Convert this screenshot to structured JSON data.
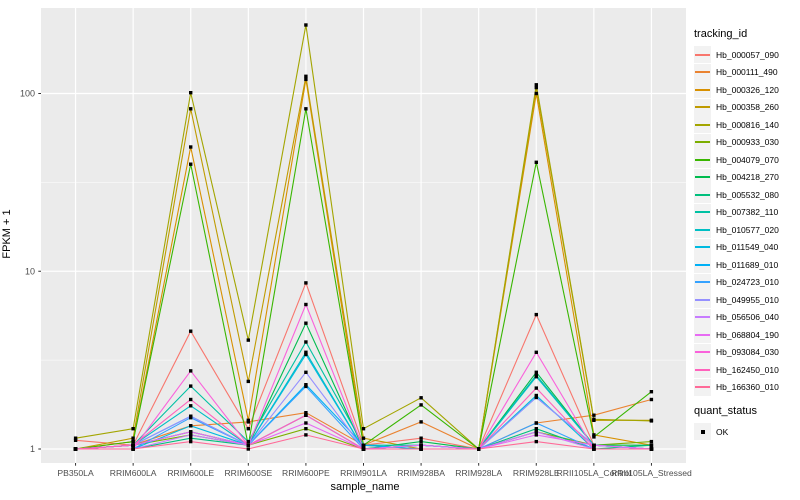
{
  "chart_data": {
    "type": "line",
    "title": "",
    "xlabel": "sample_name",
    "ylabel": "FPKM + 1",
    "y_scale": "log10",
    "y_ticks": [
      1,
      10,
      100
    ],
    "y_tick_labels": [
      "1",
      "10",
      "100"
    ],
    "y_minor_ticks": [
      3.162,
      31.62
    ],
    "ylim": [
      0.84,
      300
    ],
    "grid": "on",
    "legend_position": "right",
    "point_shape": "filled-black-square",
    "categories": [
      "PB350LA",
      "RRIM600LA",
      "RRIM600LE",
      "RRIM600SE",
      "RRIM600PE",
      "RRIM901LA",
      "RRIM928BA",
      "RRIM928LA",
      "RRIM928LE",
      "RRII105LA_Control",
      "RRII105LA_Stressed"
    ],
    "series": [
      {
        "name": "Hb_000057_090",
        "color": "#F8766D",
        "values": [
          1.12,
          1.05,
          4.6,
          1.3,
          8.6,
          1.05,
          1.15,
          1.0,
          5.7,
          1.05,
          1.0
        ]
      },
      {
        "name": "Hb_000111_490",
        "color": "#EA8331",
        "values": [
          1.0,
          1.05,
          1.35,
          1.42,
          1.6,
          1.05,
          1.42,
          1.0,
          1.4,
          1.55,
          1.9
        ]
      },
      {
        "name": "Hb_000326_120",
        "color": "#D89000",
        "values": [
          1.0,
          1.1,
          50,
          1.45,
          120,
          1.05,
          1.0,
          1.0,
          100,
          1.2,
          1.05
        ]
      },
      {
        "name": "Hb_000358_260",
        "color": "#C09B00",
        "values": [
          1.0,
          1.15,
          82,
          2.4,
          125,
          1.15,
          1.0,
          1.0,
          108,
          1.45,
          1.45
        ]
      },
      {
        "name": "Hb_000816_140",
        "color": "#A3A500",
        "values": [
          1.15,
          1.3,
          101,
          4.1,
          243,
          1.3,
          1.94,
          1.0,
          112,
          1.47,
          1.44
        ]
      },
      {
        "name": "Hb_000933_030",
        "color": "#7CAE00",
        "values": [
          1.0,
          1.05,
          1.2,
          1.05,
          1.3,
          1.0,
          1.05,
          1.0,
          1.25,
          1.05,
          1.1
        ]
      },
      {
        "name": "Hb_004079_070",
        "color": "#39B600",
        "values": [
          1.0,
          1.1,
          40,
          1.05,
          82,
          1.05,
          1.77,
          1.0,
          41,
          1.17,
          2.1
        ]
      },
      {
        "name": "Hb_004218_270",
        "color": "#00BB4E",
        "values": [
          1.0,
          1.05,
          1.25,
          1.05,
          5.1,
          1.0,
          1.1,
          1.0,
          2.7,
          1.05,
          1.05
        ]
      },
      {
        "name": "Hb_005532_080",
        "color": "#00BF7D",
        "values": [
          1.0,
          1.0,
          1.15,
          1.05,
          1.55,
          1.0,
          1.05,
          1.0,
          1.3,
          1.0,
          1.05
        ]
      },
      {
        "name": "Hb_007382_110",
        "color": "#00C1A3",
        "values": [
          1.0,
          1.05,
          2.26,
          1.1,
          4.0,
          1.05,
          1.05,
          1.0,
          2.6,
          1.05,
          1.0
        ]
      },
      {
        "name": "Hb_010577_020",
        "color": "#00BFC4",
        "values": [
          1.0,
          1.05,
          1.75,
          1.05,
          3.5,
          1.0,
          1.05,
          1.0,
          2.55,
          1.05,
          1.0
        ]
      },
      {
        "name": "Hb_011549_040",
        "color": "#00BAE0",
        "values": [
          1.0,
          1.0,
          1.35,
          1.05,
          3.4,
          1.0,
          1.0,
          1.0,
          2.0,
          1.0,
          1.0
        ]
      },
      {
        "name": "Hb_011689_010",
        "color": "#00B0F6",
        "values": [
          1.0,
          1.05,
          1.53,
          1.05,
          2.3,
          1.05,
          1.0,
          1.0,
          1.95,
          1.05,
          1.0
        ]
      },
      {
        "name": "Hb_024723_010",
        "color": "#35A2FF",
        "values": [
          1.0,
          1.0,
          1.5,
          1.05,
          2.25,
          1.0,
          1.0,
          1.0,
          1.4,
          1.0,
          1.0
        ]
      },
      {
        "name": "Hb_049955_010",
        "color": "#9590FF",
        "values": [
          1.0,
          1.05,
          1.53,
          1.05,
          2.7,
          1.0,
          1.05,
          1.0,
          1.95,
          1.05,
          1.0
        ]
      },
      {
        "name": "Hb_056506_040",
        "color": "#C77CFF",
        "values": [
          1.0,
          1.0,
          1.2,
          1.05,
          1.55,
          1.0,
          1.0,
          1.0,
          1.25,
          1.0,
          1.0
        ]
      },
      {
        "name": "Hb_068804_190",
        "color": "#E76BF3",
        "values": [
          1.0,
          1.05,
          1.25,
          1.05,
          1.4,
          1.0,
          1.05,
          1.0,
          1.2,
          1.05,
          1.0
        ]
      },
      {
        "name": "Hb_093084_030",
        "color": "#FA62DB",
        "values": [
          1.0,
          1.0,
          2.75,
          1.05,
          6.5,
          1.0,
          1.0,
          1.0,
          3.5,
          1.0,
          1.0
        ]
      },
      {
        "name": "Hb_162450_010",
        "color": "#FF62BC",
        "values": [
          1.0,
          1.05,
          1.9,
          1.05,
          1.55,
          1.0,
          1.0,
          1.0,
          2.2,
          1.0,
          1.0
        ]
      },
      {
        "name": "Hb_166360_010",
        "color": "#FF6A98",
        "values": [
          1.0,
          1.0,
          1.1,
          1.0,
          1.2,
          1.0,
          1.0,
          1.0,
          1.1,
          1.0,
          1.0
        ]
      }
    ]
  },
  "legend": {
    "tracking_title": "tracking_id",
    "quant_title": "quant_status",
    "quant_items": [
      {
        "label": "OK"
      }
    ]
  },
  "colors": {
    "panel_bg": "#EBEBEB",
    "grid_major": "#FFFFFF",
    "grid_minor": "#FFFFFF",
    "axis_text": "#4D4D4D",
    "tick_mark": "#333333",
    "point": "#000000",
    "legend_key_bg": "#F2F2F2"
  }
}
